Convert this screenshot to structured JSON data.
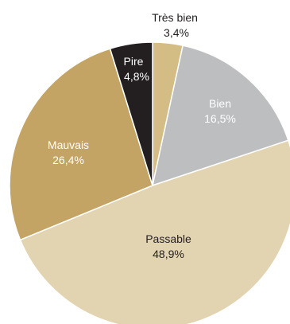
{
  "chart_data": {
    "type": "pie",
    "slices": [
      {
        "label": "Très bien",
        "value": 3.4,
        "value_text": "3,4%",
        "color": "#d4bc85",
        "text_color": "#231f20"
      },
      {
        "label": "Bien",
        "value": 16.5,
        "value_text": "16,5%",
        "color": "#bcbec0",
        "text_color": "#ffffff"
      },
      {
        "label": "Passable",
        "value": 48.9,
        "value_text": "48,9%",
        "color": "#e2d3b1",
        "text_color": "#231f20"
      },
      {
        "label": "Mauvais",
        "value": 26.4,
        "value_text": "26,4%",
        "color": "#c4a464",
        "text_color": "#ffffff"
      },
      {
        "label": "Pire",
        "value": 4.8,
        "value_text": "4,8%",
        "color": "#231f20",
        "text_color": "#ffffff"
      }
    ],
    "start": "12 o'clock",
    "direction": "clockwise",
    "separator_color": "#ffffff"
  }
}
